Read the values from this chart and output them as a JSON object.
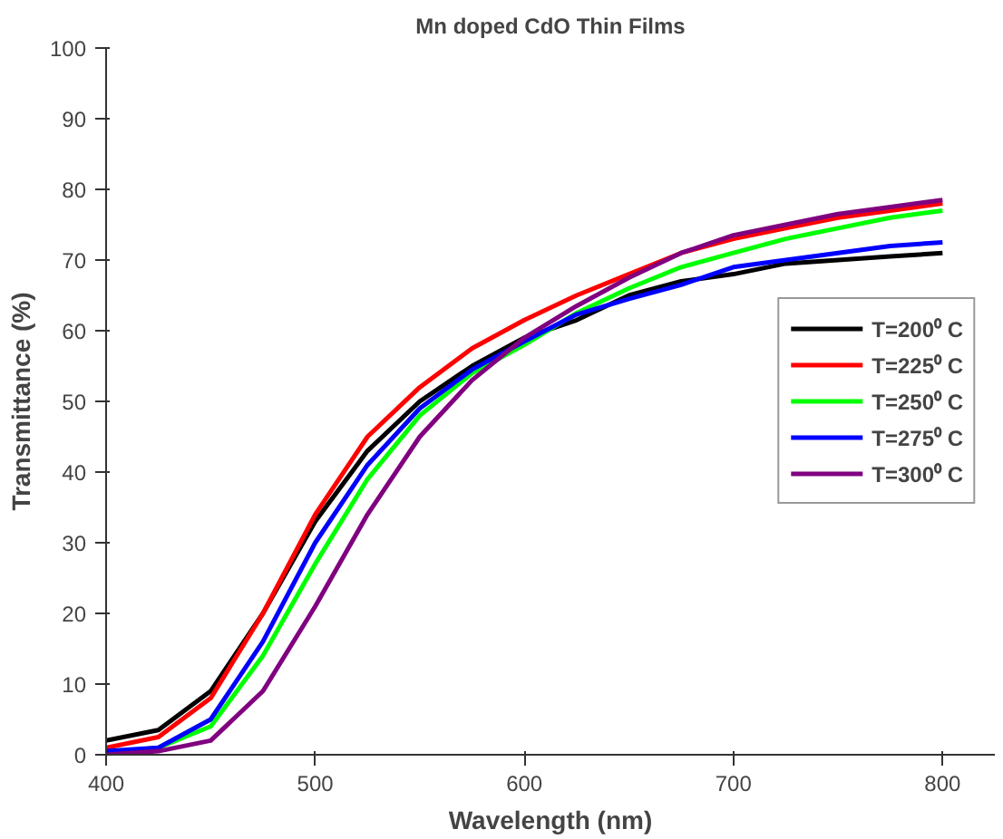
{
  "chart_data": {
    "type": "line",
    "title": "Mn doped CdO Thin Films",
    "xlabel": "Wavelength (nm)",
    "ylabel": "Transmittance (%)",
    "x": [
      400,
      425,
      450,
      475,
      500,
      525,
      550,
      575,
      600,
      625,
      650,
      675,
      700,
      725,
      750,
      775,
      800
    ],
    "series": [
      {
        "name": "T=200⁰ C",
        "color": "#000000",
        "values": [
          2,
          3.5,
          9,
          20,
          33,
          43,
          50,
          55,
          59,
          61.5,
          65,
          67,
          68,
          69.5,
          70,
          70.5,
          71
        ]
      },
      {
        "name": "T=225⁰ C",
        "color": "#ff0000",
        "values": [
          1,
          2.5,
          8,
          20,
          34,
          45,
          52,
          57.5,
          61.5,
          65,
          68,
          71,
          73,
          74.5,
          76,
          77,
          78
        ]
      },
      {
        "name": "T=250⁰ C",
        "color": "#00ff00",
        "values": [
          0.3,
          1,
          4,
          14,
          27,
          39,
          48,
          54,
          58,
          62.5,
          66,
          69,
          71,
          73,
          74.5,
          76,
          77
        ]
      },
      {
        "name": "T=275⁰ C",
        "color": "#0000ff",
        "values": [
          0.5,
          1,
          5,
          16,
          30,
          41,
          49,
          54.5,
          58.5,
          62.3,
          64.5,
          66.5,
          69,
          70,
          71,
          72,
          72.5
        ]
      },
      {
        "name": "T=300⁰ C",
        "color": "#800080",
        "values": [
          0,
          0.5,
          2,
          9,
          21,
          34,
          45,
          53,
          59,
          63.5,
          67.5,
          71,
          73.5,
          75,
          76.5,
          77.5,
          78.5
        ]
      }
    ],
    "xlim": [
      400,
      825
    ],
    "ylim": [
      0,
      100
    ],
    "xticks": [
      400,
      500,
      600,
      700,
      800
    ],
    "yticks": [
      0,
      10,
      20,
      30,
      40,
      50,
      60,
      70,
      80,
      90,
      100
    ],
    "legend": "right",
    "grid": false,
    "line_style": "solid",
    "marker": "none"
  }
}
